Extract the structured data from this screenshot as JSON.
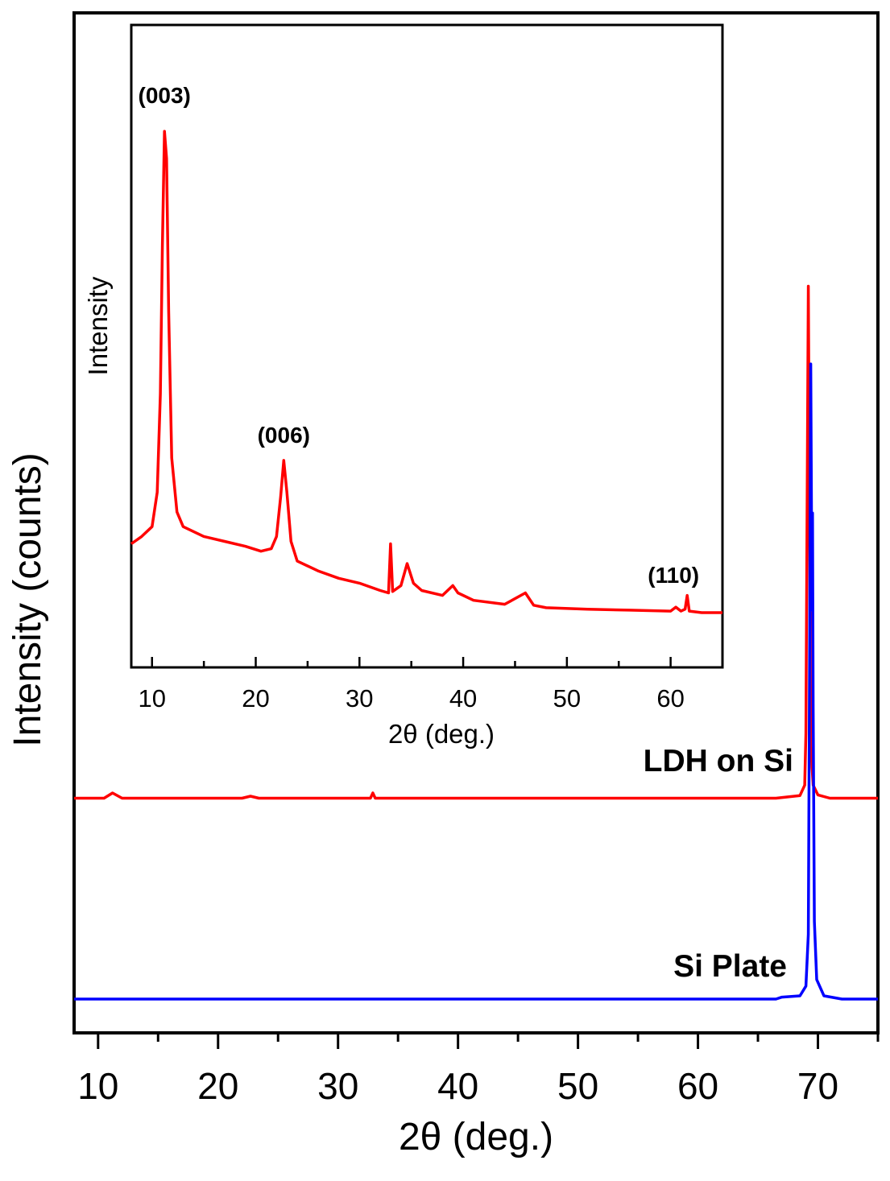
{
  "colors": {
    "ldh": "#ff0000",
    "si": "#0000ff",
    "axis": "#000000"
  },
  "chart_data": [
    {
      "type": "line",
      "title": "",
      "xlabel": "2θ (deg.)",
      "ylabel": "Intensity (counts)",
      "xlim": [
        8,
        75
      ],
      "x_ticks": [
        10,
        20,
        30,
        40,
        50,
        60,
        70
      ],
      "y_ticks_labeled": false,
      "grid": false,
      "legend": "none; series labeled directly on the plot",
      "series": [
        {
          "name": "LDH on Si",
          "color": "#ff0000",
          "offset": 0.31,
          "points": [
            [
              8,
              0
            ],
            [
              10.5,
              0
            ],
            [
              11.2,
              0.008
            ],
            [
              12,
              0
            ],
            [
              22,
              0
            ],
            [
              22.7,
              0.003
            ],
            [
              23.4,
              0
            ],
            [
              32.7,
              0
            ],
            [
              32.9,
              0.008
            ],
            [
              33.1,
              0
            ],
            [
              66.5,
              0
            ],
            [
              68.5,
              0.004
            ],
            [
              68.9,
              0.02
            ],
            [
              69.0,
              0.1
            ],
            [
              69.1,
              0.45
            ],
            [
              69.2,
              0.79
            ],
            [
              69.3,
              0.45
            ],
            [
              69.4,
              0.08
            ],
            [
              69.6,
              0.02
            ],
            [
              70.0,
              0.005
            ],
            [
              71,
              0
            ],
            [
              75,
              0
            ]
          ]
        },
        {
          "name": "Si Plate",
          "color": "#0000ff",
          "offset": 0,
          "points": [
            [
              8,
              0
            ],
            [
              66.5,
              0
            ],
            [
              67,
              0.003
            ],
            [
              68.5,
              0.005
            ],
            [
              69.0,
              0.02
            ],
            [
              69.2,
              0.1
            ],
            [
              69.3,
              0.5
            ],
            [
              69.4,
              0.98
            ],
            [
              69.5,
              0.6
            ],
            [
              69.55,
              0.75
            ],
            [
              69.6,
              0.45
            ],
            [
              69.7,
              0.12
            ],
            [
              69.9,
              0.03
            ],
            [
              70.5,
              0.005
            ],
            [
              72,
              0
            ],
            [
              75,
              0
            ]
          ]
        }
      ]
    },
    {
      "type": "line",
      "title": "",
      "xlabel": "2θ (deg.)",
      "ylabel": "Intensity",
      "xlim": [
        8,
        65
      ],
      "x_ticks": [
        10,
        20,
        30,
        40,
        50,
        60
      ],
      "y_ticks_labeled": false,
      "grid": false,
      "series": [
        {
          "name": "",
          "color": "#ff0000",
          "points": [
            [
              8,
              0.145
            ],
            [
              9,
              0.16
            ],
            [
              10,
              0.18
            ],
            [
              10.5,
              0.25
            ],
            [
              10.8,
              0.45
            ],
            [
              11.0,
              0.75
            ],
            [
              11.2,
              0.985
            ],
            [
              11.4,
              0.93
            ],
            [
              11.6,
              0.62
            ],
            [
              11.9,
              0.32
            ],
            [
              12.4,
              0.21
            ],
            [
              13,
              0.18
            ],
            [
              15,
              0.16
            ],
            [
              17,
              0.15
            ],
            [
              19,
              0.14
            ],
            [
              20.5,
              0.13
            ],
            [
              21.5,
              0.135
            ],
            [
              22.0,
              0.16
            ],
            [
              22.4,
              0.24
            ],
            [
              22.7,
              0.315
            ],
            [
              23.0,
              0.25
            ],
            [
              23.4,
              0.15
            ],
            [
              24,
              0.11
            ],
            [
              26,
              0.09
            ],
            [
              28,
              0.075
            ],
            [
              30,
              0.065
            ],
            [
              32,
              0.05
            ],
            [
              32.8,
              0.045
            ],
            [
              33.0,
              0.145
            ],
            [
              33.2,
              0.048
            ],
            [
              34,
              0.06
            ],
            [
              34.6,
              0.105
            ],
            [
              35.2,
              0.065
            ],
            [
              36,
              0.05
            ],
            [
              38,
              0.04
            ],
            [
              39.0,
              0.06
            ],
            [
              39.5,
              0.045
            ],
            [
              41,
              0.03
            ],
            [
              44,
              0.022
            ],
            [
              46.0,
              0.045
            ],
            [
              46.8,
              0.02
            ],
            [
              48,
              0.015
            ],
            [
              52,
              0.012
            ],
            [
              56,
              0.01
            ],
            [
              60,
              0.008
            ],
            [
              60.5,
              0.016
            ],
            [
              61.0,
              0.008
            ],
            [
              61.4,
              0.012
            ],
            [
              61.6,
              0.04
            ],
            [
              61.8,
              0.008
            ],
            [
              63,
              0.005
            ],
            [
              65,
              0.005
            ]
          ]
        }
      ],
      "annotations": [
        {
          "text": "(003)",
          "x": 11.2
        },
        {
          "text": "(006)",
          "x": 22.7
        },
        {
          "text": "(110)",
          "x": 61.6
        }
      ]
    }
  ]
}
